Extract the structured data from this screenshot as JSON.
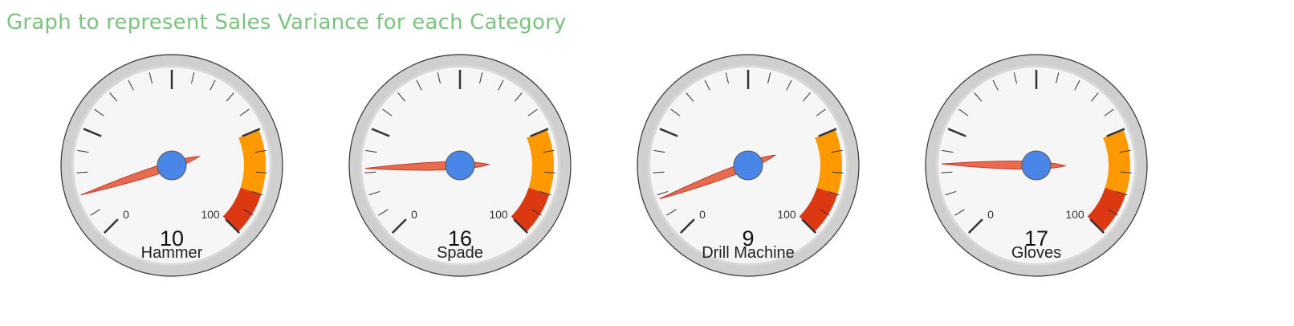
{
  "title": "Graph to represent Sales Variance for each Category",
  "chart_data": {
    "type": "gauge",
    "title": "Graph to represent Sales Variance for each Category",
    "min": 0,
    "max": 100,
    "min_label": "0",
    "max_label": "100",
    "bands": [
      {
        "from": 75,
        "to": 90,
        "color": "#ff9900"
      },
      {
        "from": 90,
        "to": 100,
        "color": "#dc3912"
      }
    ],
    "gauges": [
      {
        "label": "Hammer",
        "value": 10
      },
      {
        "label": "Spade",
        "value": 16
      },
      {
        "label": "Drill Machine",
        "value": 9
      },
      {
        "label": "Gloves",
        "value": 17
      }
    ]
  },
  "colors": {
    "needle": "#e86a4f",
    "hub": "#4a86e8",
    "face": "#f6f6f6",
    "rim": "#cfcfcf"
  }
}
